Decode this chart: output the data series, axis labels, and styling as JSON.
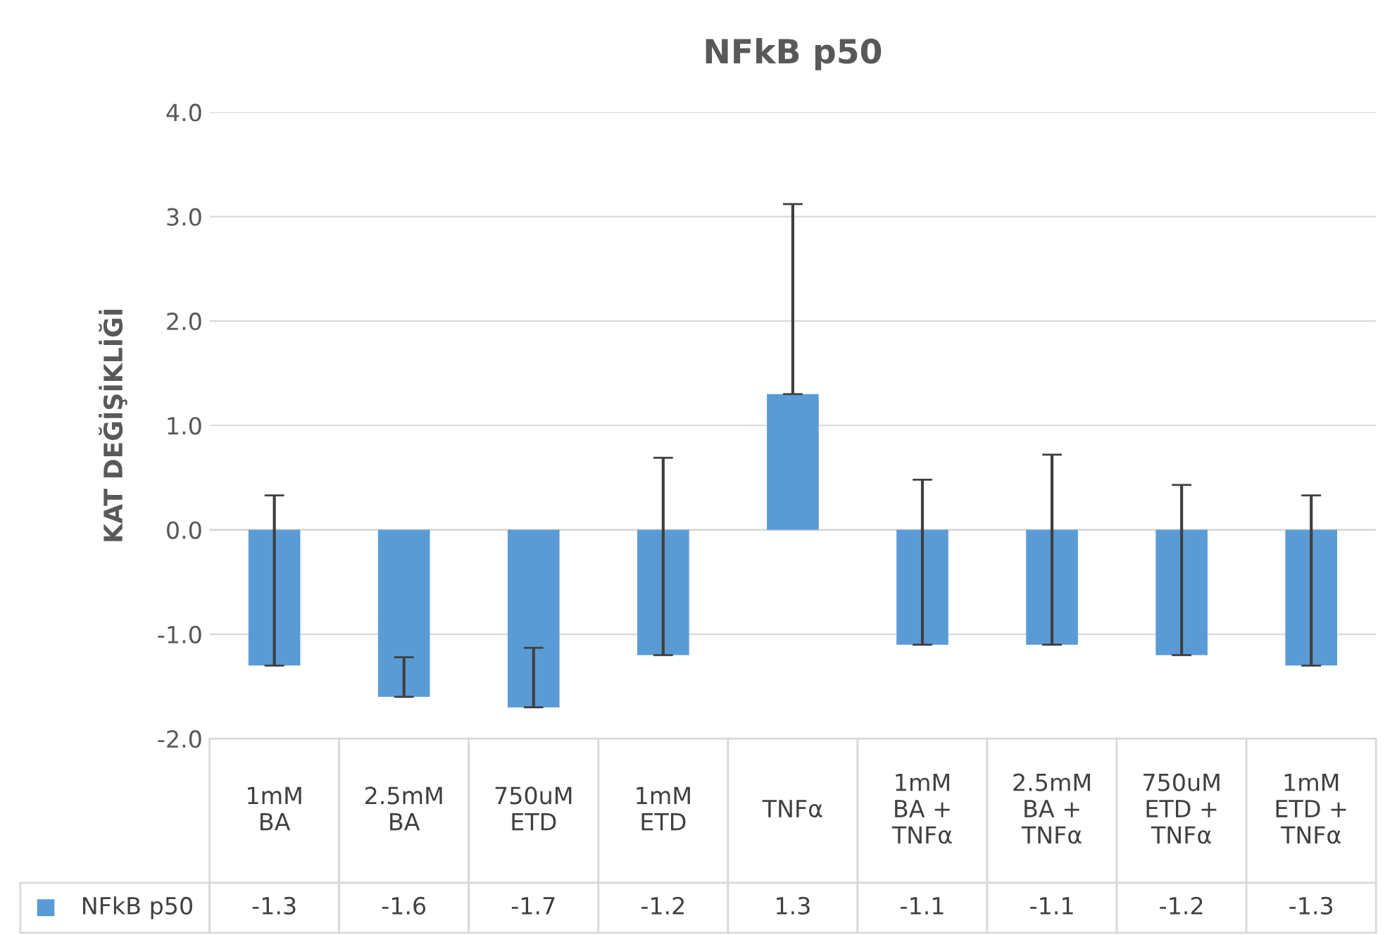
{
  "chart_data": {
    "type": "bar",
    "title": "NFkB p50",
    "ylabel": "KAT DEĞİŞİKLİĞİ",
    "categories": [
      "1mM\nBA",
      "2.5mM\nBA",
      "750uM\nETD",
      "1mM\nETD",
      "TNFα",
      "1mM\nBA +\nTNFα",
      "2.5mM\nBA +\nTNFα",
      "750uM\nETD +\nTNFα",
      "1mM\nETD +\nTNFα"
    ],
    "series": [
      {
        "name": "NFkB p50",
        "color": "#5b9bd5",
        "values": [
          -1.3,
          -1.6,
          -1.7,
          -1.2,
          1.3,
          -1.1,
          -1.1,
          -1.2,
          -1.3
        ],
        "errors": [
          [
            -1.3,
            0.33
          ],
          [
            -1.6,
            -1.22
          ],
          [
            -1.7,
            -1.13
          ],
          [
            -1.2,
            0.69
          ],
          [
            1.3,
            3.12
          ],
          [
            -1.1,
            0.48
          ],
          [
            -1.1,
            0.72
          ],
          [
            -1.2,
            0.43
          ],
          [
            -1.3,
            0.33
          ]
        ]
      }
    ],
    "data_labels": true,
    "ylim": [
      -2,
      4
    ],
    "yticks": [
      {
        "value": -2,
        "label": "-2.0"
      },
      {
        "value": -1,
        "label": "-1.0"
      },
      {
        "value": 0,
        "label": "0.0"
      },
      {
        "value": 1,
        "label": "1.0"
      },
      {
        "value": 2,
        "label": "2.0"
      },
      {
        "value": 3,
        "label": "3.0"
      },
      {
        "value": 4,
        "label": "4.0"
      }
    ],
    "grid": "y"
  }
}
